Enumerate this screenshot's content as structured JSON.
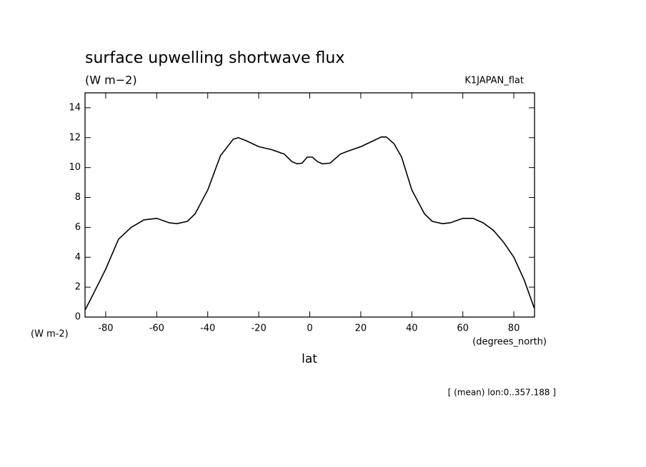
{
  "chart_data": {
    "type": "line",
    "title": "surface upwelling shortwave flux",
    "subtitle": "(W m−2)",
    "dataset_label": "K1JAPAN_flat",
    "y_units": "(W m-2)",
    "x_units": "(degrees_north)",
    "x_label": "lat",
    "annotation": "[ (mean) lon:0..357.188 ]",
    "x": [
      -88,
      -85,
      -80,
      -75,
      -70,
      -65,
      -60,
      -55,
      -52,
      -48,
      -45,
      -40,
      -35,
      -30,
      -28,
      -25,
      -20,
      -15,
      -10,
      -7,
      -5,
      -3,
      -1,
      1,
      3,
      5,
      8,
      12,
      15,
      20,
      25,
      28,
      30,
      33,
      36,
      40,
      45,
      48,
      52,
      55,
      60,
      64,
      68,
      72,
      76,
      80,
      84,
      88
    ],
    "series": [
      {
        "color": "#000000",
        "values": [
          0.5,
          1.5,
          3.2,
          5.2,
          6.0,
          6.5,
          6.6,
          6.3,
          6.25,
          6.4,
          6.9,
          8.5,
          10.8,
          11.9,
          12.0,
          11.8,
          11.4,
          11.2,
          10.9,
          10.4,
          10.25,
          10.3,
          10.7,
          10.7,
          10.4,
          10.25,
          10.3,
          10.9,
          11.1,
          11.4,
          11.8,
          12.05,
          12.05,
          11.6,
          10.7,
          8.5,
          6.9,
          6.4,
          6.25,
          6.3,
          6.6,
          6.6,
          6.3,
          5.8,
          5.0,
          4.0,
          2.5,
          0.6
        ]
      }
    ],
    "xlim": [
      -88.1,
      88.1
    ],
    "ylim": [
      0,
      15
    ],
    "xticks": [
      -80,
      -60,
      -40,
      -20,
      0,
      20,
      40,
      60,
      80
    ],
    "yticks": [
      0,
      2,
      4,
      6,
      8,
      10,
      12,
      14
    ]
  }
}
